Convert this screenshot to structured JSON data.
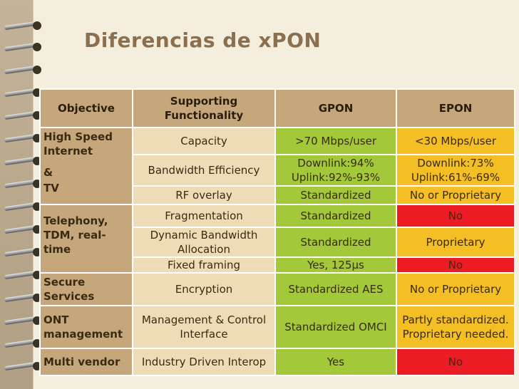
{
  "title": "Diferencias de xPON",
  "headers": {
    "objective": "Objective",
    "functionality": "Supporting Functionality",
    "gpon": "GPON",
    "epon": "EPON"
  },
  "objectives": {
    "internet_line1": "High Speed Internet",
    "internet_line2": "&",
    "internet_line3": "TV",
    "telephony": "Telephony, TDM, real-time",
    "secure": "Secure Services",
    "ont": "ONT management",
    "vendor": "Multi vendor"
  },
  "rows": [
    {
      "functionality": "Capacity",
      "gpon": ">70 Mbps/user",
      "epon": "<30 Mbps/user"
    },
    {
      "functionality": "Bandwidth Efficiency",
      "gpon": "Downlink:94% Uplink:92%-93%",
      "epon": "Downlink:73% Uplink:61%-69%"
    },
    {
      "functionality": "RF overlay",
      "gpon": "Standardized",
      "epon": "No or Proprietary"
    },
    {
      "functionality": "Fragmentation",
      "gpon": "Standardized",
      "epon": "No"
    },
    {
      "functionality": "Dynamic Bandwidth Allocation",
      "gpon": "Standardized",
      "epon": "Proprietary"
    },
    {
      "functionality": "Fixed framing",
      "gpon": "Yes, 125µs",
      "epon": "No"
    },
    {
      "functionality": "Encryption",
      "gpon": "Standardized AES",
      "epon": "No or Proprietary"
    },
    {
      "functionality": "Management & Control Interface",
      "gpon": "Standardized OMCI",
      "epon": "Partly standardized. Proprietary needed."
    },
    {
      "functionality": "Industry Driven Interop",
      "gpon": "Yes",
      "epon": "No"
    }
  ],
  "colors": {
    "header": "#c6a77c",
    "functionality": "#eedcb6",
    "gpon": "#a3c93a",
    "epon_amber": "#f3bf25",
    "epon_red": "#ec1c24",
    "title": "#8b6f4e"
  }
}
